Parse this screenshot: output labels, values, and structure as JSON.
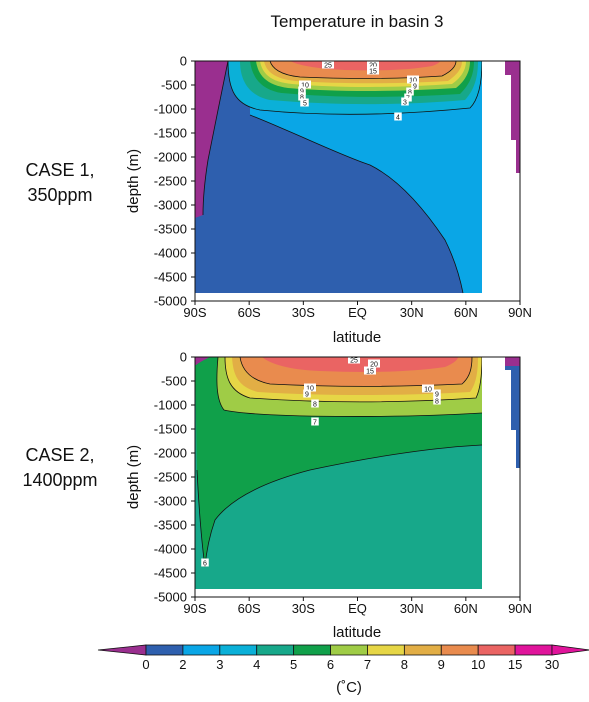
{
  "figure": {
    "title": "Temperature in basin 3"
  },
  "colors": {
    "bands": [
      "#9a2f8f",
      "#2e5fae",
      "#0aa6e6",
      "#0bb0d8",
      "#17a88a",
      "#10a04a",
      "#9fcc46",
      "#e6d646",
      "#e2ae45",
      "#e98b4e",
      "#ea6463",
      "#e0149b"
    ],
    "land": "#ffffff",
    "contour": "#111111"
  },
  "chart_data": [
    {
      "type": "heatmap",
      "name": "panel-case1",
      "case_label": [
        "CASE 1,",
        "350ppm"
      ],
      "xlabel": "latitude",
      "ylabel": "depth (m)",
      "xlim": [
        -90,
        90
      ],
      "ylim": [
        -5000,
        0
      ],
      "xticks": [
        "90S",
        "60S",
        "30S",
        "EQ",
        "30N",
        "60N",
        "90N"
      ],
      "yticks": [
        "0",
        "-500",
        "-1000",
        "-1500",
        "-2000",
        "-2500",
        "-3000",
        "-3500",
        "-4000",
        "-4500",
        "-5000"
      ],
      "contour_labels": [
        "25",
        "20",
        "15",
        "10",
        "9",
        "8",
        "7",
        "5",
        "10",
        "9",
        "8",
        "7",
        "3",
        "4"
      ]
    },
    {
      "type": "heatmap",
      "name": "panel-case2",
      "case_label": [
        "CASE 2,",
        "1400ppm"
      ],
      "xlabel": "latitude",
      "ylabel": "depth (m)",
      "xlim": [
        -90,
        90
      ],
      "ylim": [
        -5000,
        0
      ],
      "xticks": [
        "90S",
        "60S",
        "30S",
        "EQ",
        "30N",
        "60N",
        "90N"
      ],
      "yticks": [
        "0",
        "-500",
        "-1000",
        "-1500",
        "-2000",
        "-2500",
        "-3000",
        "-3500",
        "-4000",
        "-4500",
        "-5000"
      ],
      "contour_labels": [
        "25",
        "20",
        "15",
        "10",
        "9",
        "8",
        "7",
        "10",
        "9",
        "8",
        "6"
      ]
    }
  ],
  "colorbar": {
    "levels": [
      "0",
      "2",
      "3",
      "4",
      "5",
      "6",
      "7",
      "8",
      "9",
      "10",
      "15",
      "30"
    ],
    "unit": "(˚C)"
  }
}
